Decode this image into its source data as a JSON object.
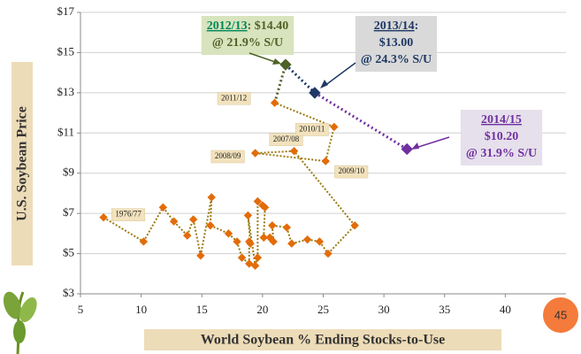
{
  "chart_data": {
    "type": "scatter",
    "y_label": "U.S. Soybean Price",
    "x_label": "World Soybean % Ending Stocks-to-Use",
    "page_number": "45",
    "xlim": [
      5,
      45
    ],
    "xticks": [
      5,
      10,
      15,
      20,
      25,
      30,
      35,
      40
    ],
    "ylim": [
      3,
      17
    ],
    "yticks": [
      {
        "value": 3,
        "label": "$3"
      },
      {
        "value": 5,
        "label": "$5"
      },
      {
        "value": 7,
        "label": "$7"
      },
      {
        "value": 9,
        "label": "$9"
      },
      {
        "value": 11,
        "label": "$11"
      },
      {
        "value": 13,
        "label": "$13"
      },
      {
        "value": 15,
        "label": "$15"
      },
      {
        "value": 17,
        "label": "$17"
      }
    ],
    "grid": true,
    "series": [
      {
        "color": "#e36c09",
        "line_color": "#9c7a12",
        "x": [
          6.9,
          10.2,
          11.8,
          12.7,
          13.8,
          14.3,
          14.9,
          15.8,
          15.7,
          17.2,
          17.9,
          18.3,
          18.9,
          18.9,
          19.0,
          18.8,
          19.4,
          19.6,
          19.6,
          20.0,
          20.2,
          20.1,
          20.6,
          20.9,
          20.8,
          22.0,
          22.4,
          23.7,
          24.7,
          25.4,
          27.6,
          22.6,
          19.4,
          25.2,
          25.9,
          21.0
        ],
        "values": [
          6.8,
          5.6,
          7.3,
          6.6,
          5.9,
          6.7,
          4.9,
          7.8,
          6.4,
          6.0,
          5.6,
          4.8,
          4.5,
          5.6,
          5.5,
          6.9,
          4.4,
          4.8,
          7.6,
          7.4,
          7.3,
          5.8,
          5.8,
          5.6,
          6.4,
          6.3,
          5.5,
          5.7,
          5.6,
          5.0,
          6.4,
          10.1,
          10.0,
          9.6,
          11.3,
          12.5
        ],
        "point_labels": [
          "1976/77",
          null,
          null,
          null,
          null,
          null,
          null,
          null,
          null,
          null,
          null,
          null,
          null,
          null,
          null,
          null,
          null,
          null,
          null,
          null,
          null,
          null,
          null,
          null,
          null,
          null,
          null,
          null,
          null,
          null,
          null,
          "2007/08",
          "2008/09",
          "2009/10",
          "2010/11",
          "2011/12"
        ]
      },
      {
        "color": "#4f6228",
        "line_color": "#4f6228",
        "x": [
          21.9
        ],
        "values": [
          14.4
        ]
      },
      {
        "color": "#1f3864",
        "line_color": "#1f3864",
        "x": [
          24.3
        ],
        "values": [
          13.0
        ]
      },
      {
        "color": "#7030a0",
        "line_color": "#7030a0",
        "x": [
          31.9
        ],
        "values": [
          10.2
        ]
      }
    ],
    "annotations": [
      {
        "head": "2012/13",
        "head_suffix": ": $14.40",
        "lines": [
          "@ 21.9% S/U"
        ],
        "color": "#4f6228",
        "head_color": "#00875a",
        "fill": "#d7e4bd"
      },
      {
        "head": "2013/14",
        "head_suffix": ":",
        "lines": [
          "$13.00",
          "@ 24.3% S/U"
        ],
        "color": "#1f3864",
        "head_color": "#1f3864",
        "fill": "#d9d9d9"
      },
      {
        "head": "2014/15",
        "lines": [
          "$10.20",
          "@ 31.9% S/U"
        ],
        "color": "#7030a0",
        "head_color": "#7030a0",
        "fill": "#e6e0ec"
      }
    ]
  }
}
